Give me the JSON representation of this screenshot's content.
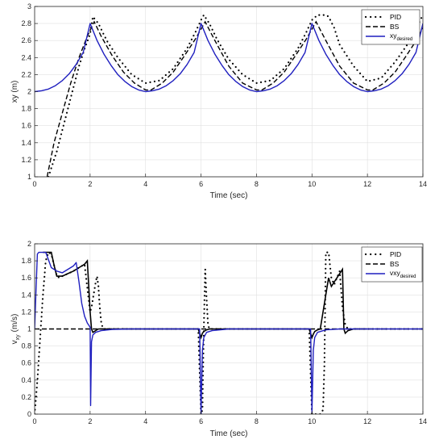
{
  "colors": {
    "pid": "#000000",
    "bs": "#000000",
    "desired": "#1f1fbf",
    "grid": "#e0e0e0",
    "axis": "#262626"
  },
  "chart_data": [
    {
      "type": "line",
      "xlabel": "Time (sec)",
      "ylabel": "xy (m)",
      "xlim": [
        0,
        14
      ],
      "ylim": [
        1,
        3
      ],
      "xticks": [
        "0",
        "2",
        "4",
        "6",
        "8",
        "10",
        "12",
        "14"
      ],
      "yticks": [
        "1",
        "1.2",
        "1.4",
        "1.6",
        "1.8",
        "2",
        "2.2",
        "2.4",
        "2.6",
        "2.8",
        "3"
      ],
      "grid": true,
      "legend_position": "top-right",
      "legend": [
        {
          "label": "PID",
          "style": "dotted"
        },
        {
          "label": "BS",
          "style": "dashed"
        },
        {
          "label": "xy",
          "subscript": "desired",
          "style": "solid"
        }
      ],
      "series": [
        {
          "name": "PID",
          "style": "dotted",
          "x": [
            0.5,
            0.8,
            1.0,
            1.2,
            1.4,
            1.6,
            1.8,
            2.0,
            2.1,
            2.3,
            2.6,
            3.0,
            3.5,
            4.0,
            4.5,
            5.0,
            5.5,
            5.8,
            6.0,
            6.1,
            6.3,
            6.6,
            7.0,
            7.5,
            8.0,
            8.5,
            9.0,
            9.5,
            9.8,
            10.0,
            10.2,
            10.5,
            10.6,
            10.8,
            11.0,
            11.5,
            12.0,
            12.5,
            13.0,
            13.5,
            14.0
          ],
          "y": [
            1.0,
            1.3,
            1.55,
            1.8,
            2.05,
            2.3,
            2.5,
            2.68,
            2.88,
            2.8,
            2.6,
            2.4,
            2.2,
            2.1,
            2.13,
            2.27,
            2.51,
            2.7,
            2.84,
            2.9,
            2.8,
            2.6,
            2.38,
            2.2,
            2.1,
            2.13,
            2.27,
            2.51,
            2.7,
            2.84,
            2.9,
            2.9,
            2.88,
            2.75,
            2.55,
            2.3,
            2.12,
            2.16,
            2.35,
            2.58,
            2.9
          ]
        },
        {
          "name": "BS",
          "style": "dashed",
          "x": [
            0.45,
            0.7,
            1.0,
            1.3,
            1.6,
            1.9,
            2.15,
            2.4,
            2.8,
            3.2,
            3.6,
            4.0,
            4.2,
            4.6,
            5.0,
            5.4,
            5.8,
            6.15,
            6.5,
            7.0,
            7.5,
            8.0,
            8.2,
            8.6,
            9.0,
            9.4,
            9.8,
            10.15,
            10.5,
            11.0,
            11.5,
            12.0,
            12.2,
            12.6,
            13.0,
            13.4,
            13.8,
            14.0
          ],
          "y": [
            1.0,
            1.4,
            1.75,
            2.1,
            2.4,
            2.65,
            2.82,
            2.65,
            2.42,
            2.23,
            2.1,
            2.02,
            2.02,
            2.1,
            2.23,
            2.42,
            2.62,
            2.82,
            2.6,
            2.3,
            2.1,
            2.02,
            2.02,
            2.1,
            2.23,
            2.42,
            2.62,
            2.82,
            2.6,
            2.3,
            2.1,
            2.02,
            2.02,
            2.1,
            2.23,
            2.42,
            2.62,
            2.75
          ]
        },
        {
          "name": "xy_desired",
          "style": "solid",
          "x": [
            0.0,
            0.25,
            0.5,
            0.75,
            1.0,
            1.25,
            1.5,
            1.75,
            2.0,
            2.25,
            2.5,
            2.75,
            3.0,
            3.25,
            3.5,
            3.75,
            4.0,
            4.25,
            4.5,
            4.75,
            5.0,
            5.25,
            5.5,
            5.75,
            6.0,
            6.25,
            6.5,
            6.75,
            7.0,
            7.25,
            7.5,
            7.75,
            8.0,
            8.25,
            8.5,
            8.75,
            9.0,
            9.25,
            9.5,
            9.75,
            10.0,
            10.25,
            10.5,
            10.75,
            11.0,
            11.25,
            11.5,
            11.75,
            12.0,
            12.25,
            12.5,
            12.75,
            13.0,
            13.25,
            13.5,
            13.75,
            14.0
          ],
          "y": [
            2.0,
            2.01,
            2.03,
            2.07,
            2.13,
            2.21,
            2.32,
            2.46,
            2.8,
            2.6,
            2.44,
            2.31,
            2.2,
            2.12,
            2.06,
            2.02,
            2.0,
            2.01,
            2.03,
            2.07,
            2.13,
            2.21,
            2.32,
            2.46,
            2.8,
            2.6,
            2.44,
            2.31,
            2.2,
            2.12,
            2.06,
            2.02,
            2.0,
            2.01,
            2.03,
            2.07,
            2.13,
            2.21,
            2.32,
            2.46,
            2.8,
            2.6,
            2.44,
            2.31,
            2.2,
            2.12,
            2.06,
            2.02,
            2.0,
            2.01,
            2.03,
            2.07,
            2.13,
            2.21,
            2.32,
            2.46,
            2.8
          ]
        }
      ]
    },
    {
      "type": "line",
      "xlabel": "Time (sec)",
      "ylabel": "v",
      "ylabel_sub": "xy",
      "ylabel_unit": "(m/s)",
      "xlim": [
        0,
        14
      ],
      "ylim": [
        0,
        2
      ],
      "xticks": [
        "0",
        "2",
        "4",
        "6",
        "8",
        "10",
        "12",
        "14"
      ],
      "yticks": [
        "0",
        "0.2",
        "0.4",
        "0.6",
        "0.8",
        "1",
        "1.2",
        "1.4",
        "1.6",
        "1.8",
        "2"
      ],
      "grid": true,
      "legend_position": "top-right",
      "legend": [
        {
          "label": "PID",
          "style": "dotted"
        },
        {
          "label": "BS",
          "style": "dashed"
        },
        {
          "label": "vxy",
          "subscript": "desired",
          "style": "solid"
        }
      ],
      "series": [
        {
          "name": "PID",
          "style": "dotted",
          "x": [
            0.0,
            0.1,
            0.2,
            0.3,
            0.4,
            0.5,
            0.6,
            0.7,
            0.8,
            0.9,
            1.0,
            1.2,
            1.4,
            1.6,
            1.8,
            2.0,
            2.05,
            2.1,
            2.15,
            2.2,
            2.25,
            2.3,
            2.35,
            2.4,
            2.45,
            2.5,
            2.6,
            2.8,
            3.0,
            4.0,
            5.0,
            5.9,
            6.0,
            6.05,
            6.1,
            6.15,
            6.2,
            6.25,
            6.3,
            6.4,
            6.6,
            7.0,
            8.0,
            9.0,
            9.9,
            10.0,
            10.1,
            10.2,
            10.3,
            10.4,
            10.45,
            10.5,
            10.6,
            10.7,
            10.8,
            10.9,
            11.0,
            11.1,
            11.2,
            11.3,
            11.4,
            11.6,
            12.0,
            13.0,
            14.0
          ],
          "y": [
            0.0,
            0.4,
            0.9,
            1.4,
            1.8,
            1.9,
            1.88,
            1.75,
            1.62,
            1.6,
            1.62,
            1.65,
            1.68,
            1.72,
            1.76,
            1.2,
            1.25,
            1.35,
            1.45,
            1.55,
            1.62,
            1.5,
            1.25,
            1.08,
            1.02,
            1.0,
            1.0,
            1.0,
            1.0,
            1.0,
            1.0,
            1.0,
            0.0,
            0.05,
            1.0,
            1.7,
            1.35,
            1.05,
            1.0,
            1.0,
            1.0,
            1.0,
            1.0,
            1.0,
            1.0,
            0.0,
            0.0,
            0.0,
            0.0,
            0.05,
            0.6,
            1.9,
            1.9,
            1.6,
            1.52,
            1.6,
            1.68,
            1.25,
            1.05,
            1.0,
            1.0,
            1.0,
            1.0,
            1.0,
            1.0
          ]
        },
        {
          "name": "BS",
          "style": "dashed",
          "x": [
            0.0,
            0.1,
            0.15,
            0.2,
            0.3,
            0.5,
            1.0,
            1.5,
            2.0,
            3.0,
            4.0,
            5.0,
            6.0,
            7.0,
            8.0,
            9.0,
            10.0,
            10.5,
            10.6,
            10.8,
            11.0,
            11.2,
            11.4,
            12.0,
            13.0,
            14.0
          ],
          "y": [
            1.0,
            1.0,
            1.0,
            1.0,
            1.0,
            1.0,
            1.0,
            1.0,
            1.0,
            1.0,
            1.0,
            1.0,
            1.0,
            1.0,
            1.0,
            1.0,
            1.0,
            1.0,
            1.0,
            1.0,
            1.0,
            1.0,
            1.0,
            1.0,
            1.0,
            1.0
          ]
        },
        {
          "name": "BS_segments",
          "style": "dashed-solid",
          "x": [
            0.3,
            0.4,
            0.5,
            0.6,
            0.7,
            0.8,
            1.0,
            1.2,
            1.4,
            1.6,
            1.8,
            1.9,
            2.0,
            2.05,
            2.1,
            2.15,
            2.2,
            2.3,
            2.4,
            2.5,
            2.6,
            3.0,
            5.9,
            6.0,
            6.05,
            6.1,
            6.15,
            6.2,
            6.3,
            6.4,
            9.9,
            10.0,
            10.05,
            10.1,
            10.15,
            10.2,
            10.3,
            10.6,
            10.7,
            10.8,
            10.9,
            11.0,
            11.1,
            11.15,
            11.2,
            11.3,
            11.5,
            12.0
          ],
          "y": [
            1.9,
            1.9,
            1.9,
            1.9,
            1.75,
            1.62,
            1.62,
            1.65,
            1.68,
            1.72,
            1.76,
            1.8,
            1.2,
            1.0,
            0.96,
            0.97,
            0.98,
            1.0,
            1.0,
            1.0,
            1.0,
            1.0,
            1.0,
            0.9,
            0.95,
            0.97,
            0.98,
            0.99,
            1.0,
            1.0,
            1.0,
            0.9,
            0.94,
            0.97,
            0.98,
            0.99,
            1.0,
            1.6,
            1.5,
            1.55,
            1.6,
            1.65,
            1.7,
            1.0,
            0.95,
            0.98,
            1.0,
            1.0
          ]
        },
        {
          "name": "vxy_desired",
          "style": "solid",
          "x": [
            0.0,
            0.05,
            0.1,
            0.15,
            0.2,
            0.4,
            0.6,
            0.8,
            1.0,
            1.2,
            1.4,
            1.5,
            1.6,
            1.7,
            1.8,
            1.9,
            2.0,
            2.02,
            2.05,
            2.1,
            2.2,
            2.4,
            2.8,
            3.5,
            5.0,
            5.95,
            6.0,
            6.05,
            6.1,
            6.2,
            6.4,
            7.0,
            9.0,
            9.95,
            10.0,
            10.05,
            10.1,
            10.2,
            10.5,
            11.0,
            12.0,
            14.0
          ],
          "y": [
            1.0,
            1.45,
            1.88,
            1.9,
            1.9,
            1.9,
            1.72,
            1.68,
            1.66,
            1.7,
            1.74,
            1.78,
            1.55,
            1.3,
            1.15,
            1.07,
            1.02,
            0.1,
            0.85,
            0.93,
            0.96,
            0.98,
            0.995,
            1.0,
            1.0,
            1.0,
            0.0,
            0.75,
            0.9,
            0.96,
            0.98,
            1.0,
            1.0,
            1.0,
            0.02,
            0.75,
            0.9,
            0.96,
            0.99,
            1.0,
            1.0,
            1.0
          ]
        }
      ]
    }
  ]
}
